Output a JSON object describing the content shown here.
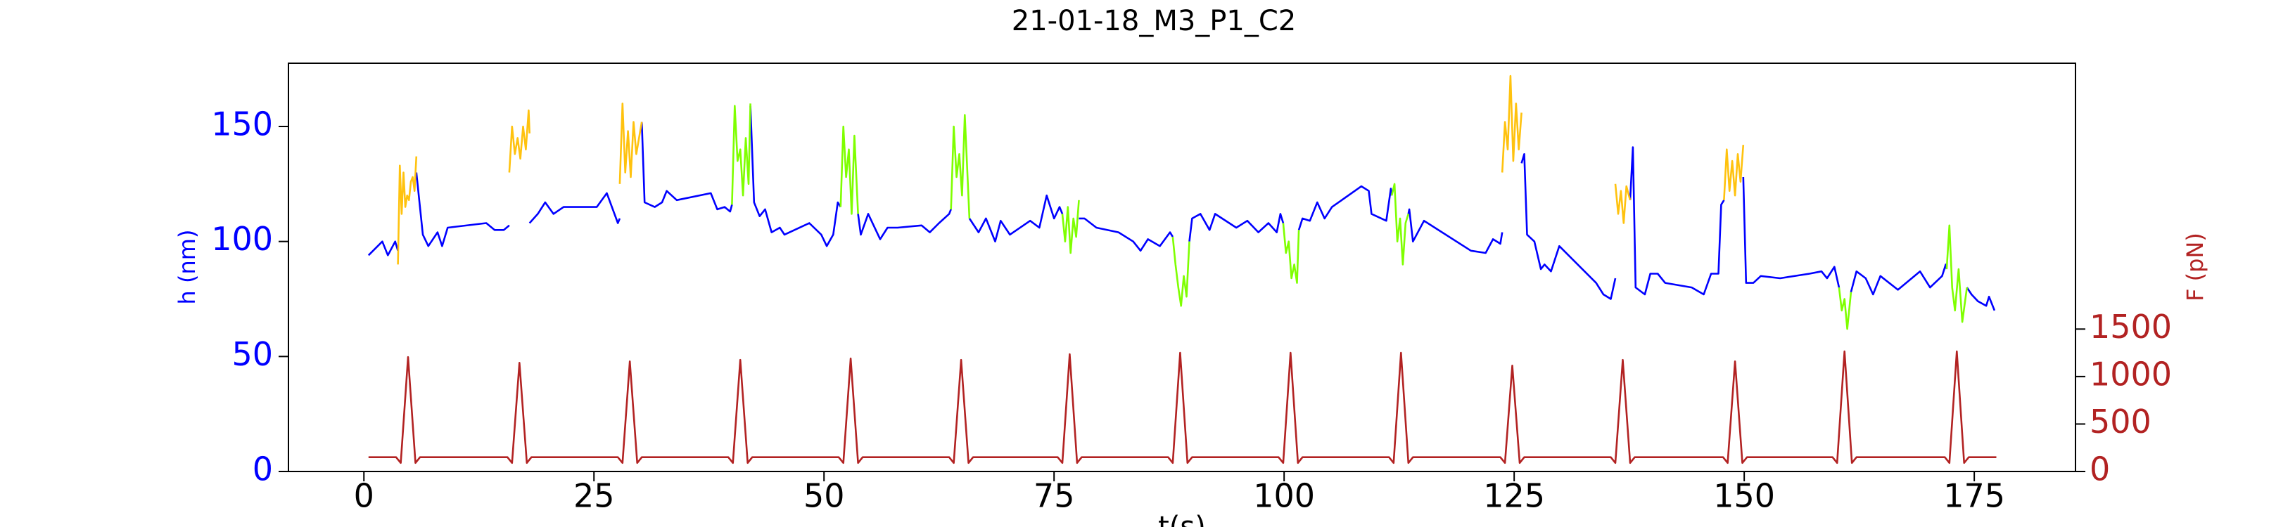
{
  "chart_data": {
    "type": "line",
    "title": "21-01-18_M3_P1_C2",
    "xlabel": "t(s)",
    "ylabel": "h (nm)",
    "y2label": "F (pN)",
    "ylabel_color": "#0000ff",
    "y2label_color": "#b22222",
    "xlim": [
      -8.2,
      186.0
    ],
    "xticks": [
      0,
      25,
      50,
      75,
      100,
      125,
      150,
      175
    ],
    "ylim": [
      0,
      177.5
    ],
    "yticks": [
      0,
      50,
      100,
      150
    ],
    "y2lim": [
      0,
      4300
    ],
    "y2ticks": [
      0,
      500,
      1000,
      1500
    ],
    "grid": false,
    "series": [
      {
        "color": "#0000ff",
        "x": [
          0.5,
          2,
          2.6,
          3.4,
          3.7,
          null,
          5.7,
          6.4,
          7,
          8,
          8.5,
          9.1,
          13.3,
          14.2,
          15.2,
          15.8,
          null,
          18,
          18.9,
          19.7,
          20.6,
          21.7,
          25.3,
          26.4,
          27.6,
          27.8,
          null,
          30.2,
          30.5,
          31.6,
          32.4,
          32.9,
          34,
          37.7,
          38.4,
          39.2,
          39.8,
          40,
          null,
          42,
          42.4,
          43,
          43.6,
          44.3,
          45.2,
          45.7,
          48.4,
          49.7,
          50.3,
          51,
          51.5,
          51.8,
          null,
          53.7,
          54,
          54.8,
          56.1,
          56.9,
          58,
          60.6,
          61.5,
          62.5,
          63.6,
          63.8,
          null,
          65.8,
          66.8,
          67.6,
          68.6,
          69.2,
          70.2,
          72.4,
          73.4,
          74.2,
          75,
          75.6,
          75.9,
          null,
          77.7,
          78.3,
          79.6,
          82,
          83.6,
          84.4,
          85.2,
          86.5,
          87.6,
          87.9,
          null,
          89.7,
          90,
          90.9,
          91.9,
          92.5,
          94.8,
          96,
          97.2,
          98.3,
          99.2,
          99.6,
          99.9,
          null,
          101.6,
          102,
          102.8,
          103.6,
          104.4,
          105.2,
          108.4,
          109.2,
          109.5,
          111.1,
          111.6,
          111.7,
          null,
          113.5,
          113.6,
          114,
          115.2,
          120.3,
          121.9,
          122.7,
          123.5,
          123.7,
          null,
          125.8,
          126.1,
          126.4,
          127.2,
          127.9,
          128.3,
          129,
          129.9,
          133.9,
          134.7,
          135.5,
          136,
          null,
          137.6,
          137.9,
          138.2,
          139.2,
          139.8,
          140.6,
          141.4,
          144.3,
          145.6,
          146.4,
          147.2,
          147.5,
          147.8,
          null,
          149.9,
          150.2,
          151,
          151.8,
          153.9,
          157.1,
          158.4,
          159,
          159.8,
          160.3,
          null,
          161.6,
          162.2,
          163.2,
          164,
          164.8,
          166.7,
          169.1,
          170.2,
          171.5,
          171.9,
          172,
          null,
          174.2,
          174.7,
          175.4,
          176.3,
          176.6,
          177.2
        ],
        "values": [
          94,
          100,
          94,
          100,
          96,
          null,
          130,
          103,
          98,
          104,
          98,
          106,
          108,
          105,
          105,
          107,
          null,
          108,
          112,
          117,
          112,
          115,
          115,
          121,
          108,
          110,
          null,
          152,
          117,
          115,
          117,
          122,
          118,
          121,
          114,
          115,
          113,
          116,
          null,
          159,
          117,
          111,
          114,
          104,
          106,
          103,
          108,
          103,
          98,
          103,
          117,
          115,
          null,
          112,
          103,
          112,
          101,
          106,
          106,
          107,
          104,
          108,
          112,
          114,
          null,
          110,
          104,
          110,
          100,
          109,
          103,
          109,
          106,
          120,
          110,
          115,
          112,
          null,
          110,
          110,
          106,
          104,
          100,
          96,
          101,
          98,
          104,
          102,
          null,
          100,
          110,
          112,
          105,
          112,
          106,
          109,
          104,
          108,
          104,
          112,
          108,
          null,
          105,
          110,
          109,
          117,
          110,
          115,
          124,
          122,
          112,
          109,
          123,
          120,
          null,
          112,
          114,
          100,
          109,
          96,
          95,
          101,
          99,
          104,
          null,
          134,
          138,
          103,
          100,
          88,
          90,
          87,
          98,
          82,
          77,
          75,
          84,
          null,
          118,
          141,
          80,
          77,
          86,
          86,
          82,
          80,
          77,
          86,
          86,
          116,
          118,
          null,
          128,
          82,
          82,
          85,
          84,
          86,
          87,
          84,
          89,
          80,
          null,
          78,
          87,
          84,
          77,
          85,
          79,
          87,
          80,
          85,
          90,
          88,
          null,
          80,
          77,
          74,
          72,
          76,
          70
        ]
      },
      {
        "color": "#ffc20e",
        "x": [
          3.7,
          3.9,
          4.1,
          4.3,
          4.5,
          4.7,
          4.9,
          5.1,
          5.3,
          5.5,
          5.7,
          null,
          15.8,
          16.1,
          16.4,
          16.7,
          17,
          17.3,
          17.6,
          17.9,
          18,
          null,
          27.8,
          28.1,
          28.4,
          28.7,
          29,
          29.3,
          29.6,
          29.9,
          30.2,
          null,
          123.7,
          124,
          124.3,
          124.6,
          124.9,
          125.2,
          125.5,
          125.8,
          null,
          136,
          136.3,
          136.6,
          136.9,
          137.2,
          137.6,
          null,
          147.8,
          148.1,
          148.4,
          148.7,
          149,
          149.3,
          149.6,
          149.9
        ],
        "values": [
          90,
          133,
          112,
          130,
          115,
          120,
          118,
          126,
          128,
          122,
          137,
          null,
          130,
          150,
          138,
          145,
          136,
          150,
          140,
          157,
          147,
          null,
          125,
          160,
          130,
          148,
          128,
          152,
          138,
          145,
          152,
          null,
          130,
          152,
          140,
          172,
          135,
          160,
          140,
          156,
          null,
          125,
          112,
          122,
          108,
          124,
          118,
          null,
          118,
          140,
          122,
          135,
          120,
          138,
          126,
          142
        ]
      },
      {
        "color": "#7fff00",
        "x": [
          40,
          40.3,
          40.6,
          40.9,
          41.2,
          41.5,
          41.8,
          42,
          null,
          51.8,
          52.1,
          52.4,
          52.7,
          53,
          53.3,
          53.7,
          null,
          63.8,
          64.1,
          64.4,
          64.7,
          65,
          65.3,
          65.8,
          null,
          75.9,
          76.2,
          76.5,
          76.8,
          77.1,
          77.4,
          77.7,
          null,
          87.9,
          88.2,
          88.5,
          88.8,
          89.1,
          89.4,
          89.7,
          null,
          99.9,
          100.2,
          100.5,
          100.8,
          101.1,
          101.4,
          101.6,
          null,
          111.7,
          112,
          112.3,
          112.6,
          112.9,
          113.2,
          113.5,
          null,
          160.3,
          160.6,
          160.9,
          161.2,
          161.6,
          null,
          172,
          172.3,
          172.6,
          172.9,
          173.3,
          173.7,
          174.2
        ],
        "values": [
          116,
          159,
          135,
          140,
          120,
          145,
          125,
          160,
          null,
          115,
          150,
          128,
          140,
          112,
          146,
          112,
          null,
          114,
          150,
          128,
          138,
          120,
          155,
          110,
          null,
          112,
          100,
          115,
          95,
          110,
          102,
          118,
          null,
          102,
          90,
          80,
          72,
          85,
          76,
          100,
          null,
          108,
          95,
          100,
          84,
          90,
          82,
          105,
          null,
          120,
          125,
          100,
          110,
          90,
          108,
          112,
          null,
          80,
          70,
          75,
          62,
          78,
          null,
          88,
          107,
          80,
          70,
          88,
          65,
          80
        ]
      },
      {
        "color": "#b22222",
        "axis": "y2",
        "x": [
          0.5,
          3.5,
          4,
          4.8,
          5.6,
          6.1,
          15.6,
          16.1,
          16.9,
          17.7,
          18.2,
          27.6,
          28.1,
          28.9,
          29.7,
          30.2,
          39.6,
          40.1,
          40.9,
          41.7,
          42.2,
          51.6,
          52.1,
          52.9,
          53.7,
          54.2,
          63.6,
          64.1,
          64.9,
          65.7,
          66.2,
          75.4,
          75.9,
          76.7,
          77.5,
          78,
          87.4,
          87.9,
          88.7,
          89.5,
          90,
          99.4,
          99.9,
          100.7,
          101.5,
          102,
          111.4,
          111.9,
          112.7,
          113.5,
          114,
          123.5,
          124,
          124.8,
          125.6,
          126.1,
          135.5,
          136,
          136.8,
          137.6,
          138.1,
          147.7,
          148.2,
          149,
          149.8,
          150.3,
          159.6,
          160.1,
          160.9,
          161.7,
          162.2,
          171.8,
          172.3,
          173.1,
          173.9,
          174.4,
          177.4
        ],
        "values": [
          150,
          150,
          90,
          1205,
          90,
          150,
          150,
          90,
          1145,
          90,
          150,
          150,
          90,
          1160,
          90,
          150,
          150,
          90,
          1175,
          90,
          150,
          150,
          90,
          1190,
          90,
          150,
          150,
          90,
          1175,
          90,
          150,
          150,
          90,
          1235,
          90,
          150,
          150,
          90,
          1250,
          90,
          150,
          150,
          90,
          1250,
          90,
          150,
          150,
          90,
          1250,
          90,
          150,
          150,
          90,
          1115,
          90,
          150,
          150,
          90,
          1175,
          90,
          150,
          150,
          90,
          1160,
          90,
          150,
          150,
          90,
          1265,
          90,
          150,
          150,
          90,
          1265,
          90,
          150,
          150
        ]
      }
    ]
  }
}
